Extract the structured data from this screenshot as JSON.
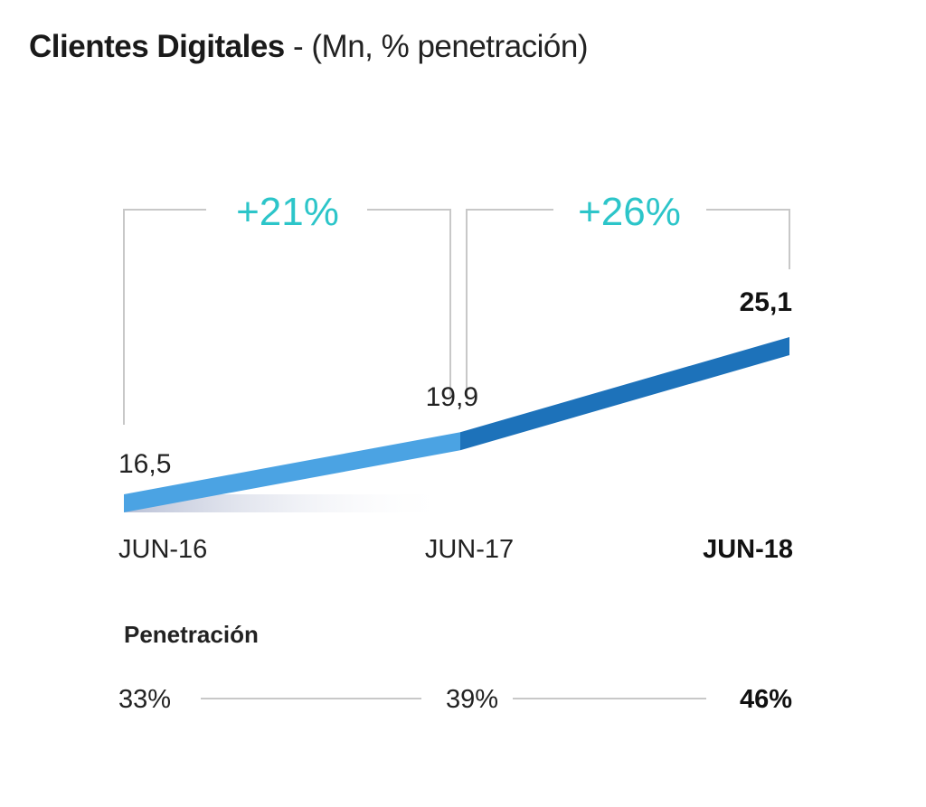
{
  "chart_data": {
    "type": "line",
    "title": "Clientes Digitales",
    "subtitle": "- (Mn, % penetración)",
    "categories": [
      "JUN-16",
      "JUN-17",
      "JUN-18"
    ],
    "series": [
      {
        "name": "Clientes Digitales (Mn)",
        "values": [
          16.5,
          19.9,
          25.1
        ],
        "labels": [
          "16,5",
          "19,9",
          "25,1"
        ]
      }
    ],
    "growth_annotations": [
      {
        "from": "JUN-16",
        "to": "JUN-17",
        "label": "+21%"
      },
      {
        "from": "JUN-17",
        "to": "JUN-18",
        "label": "+26%"
      }
    ],
    "penetration": {
      "label": "Penetración",
      "values": [
        "33%",
        "39%",
        "46%"
      ]
    },
    "colors": {
      "segment_1": "#4ba3e3",
      "segment_2": "#1d72ba",
      "growth": "#2cc5c9",
      "bracket": "#c8c8c8",
      "area_start": "#b9c0d6"
    },
    "ylim": [
      16.5,
      25.1
    ],
    "xlabel": "",
    "ylabel": "",
    "grid": false,
    "legend": "none"
  }
}
